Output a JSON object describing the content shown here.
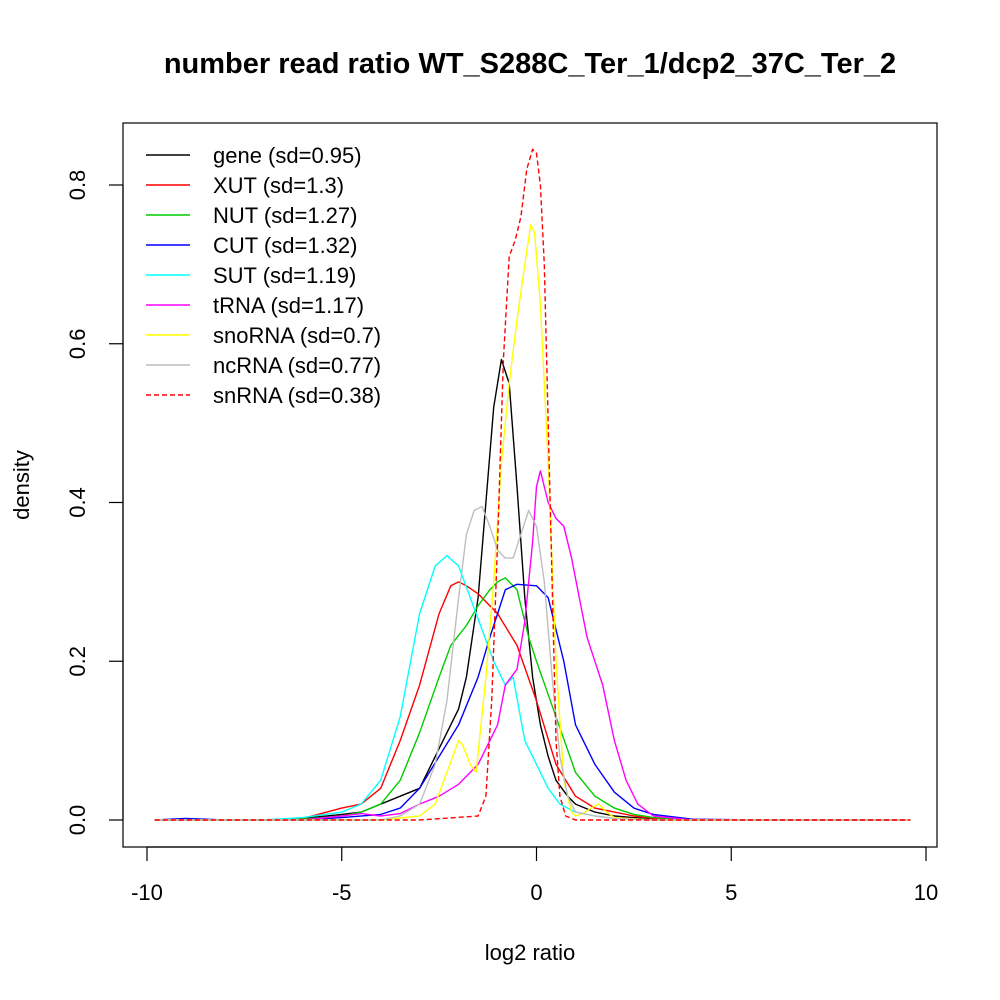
{
  "chart_data": {
    "type": "line",
    "title": "number read ratio WT_S288C_Ter_1/dcp2_37C_Ter_2",
    "xlabel": "log2 ratio",
    "ylabel": "density",
    "xlim": [
      -10,
      10
    ],
    "ylim": [
      0,
      0.85
    ],
    "xticks": [
      -10,
      -5,
      0,
      5,
      10
    ],
    "yticks": [
      0.0,
      0.2,
      0.4,
      0.6,
      0.8
    ],
    "xtick_labels": [
      "-10",
      "-5",
      "0",
      "5",
      "10"
    ],
    "ytick_labels": [
      "0.0",
      "0.2",
      "0.4",
      "0.6",
      "0.8"
    ],
    "grid": false,
    "legend_position": "top-left",
    "series": [
      {
        "name": "gene (sd=0.95)",
        "color": "#000000",
        "dash": false,
        "x": [
          -9.8,
          -7,
          -6,
          -5,
          -4.5,
          -4,
          -3.5,
          -3,
          -2.5,
          -2.2,
          -2,
          -1.8,
          -1.5,
          -1.3,
          -1.1,
          -0.9,
          -0.7,
          -0.5,
          -0.3,
          -0.1,
          0.1,
          0.3,
          0.5,
          0.8,
          1,
          1.5,
          2,
          3,
          4,
          6,
          9.6
        ],
        "y": [
          0,
          0,
          0.002,
          0.007,
          0.01,
          0.02,
          0.03,
          0.04,
          0.09,
          0.12,
          0.14,
          0.18,
          0.28,
          0.4,
          0.52,
          0.58,
          0.55,
          0.42,
          0.28,
          0.18,
          0.12,
          0.08,
          0.05,
          0.03,
          0.02,
          0.01,
          0.005,
          0.001,
          0,
          0,
          0
        ]
      },
      {
        "name": "XUT (sd=1.3)",
        "color": "#ff0000",
        "dash": false,
        "x": [
          -9.8,
          -7,
          -6,
          -5,
          -4.5,
          -4,
          -3.5,
          -3,
          -2.5,
          -2.2,
          -2,
          -1.8,
          -1.5,
          -1,
          -0.5,
          0,
          0.5,
          1,
          1.5,
          2,
          2.5,
          3,
          4,
          6,
          9.6
        ],
        "y": [
          0,
          0,
          0.002,
          0.015,
          0.02,
          0.04,
          0.1,
          0.17,
          0.26,
          0.295,
          0.3,
          0.295,
          0.285,
          0.26,
          0.22,
          0.15,
          0.07,
          0.03,
          0.015,
          0.01,
          0.005,
          0.002,
          0,
          0,
          0
        ]
      },
      {
        "name": "NUT (sd=1.27)",
        "color": "#00cd00",
        "dash": false,
        "x": [
          -9.8,
          -7,
          -6,
          -5,
          -4.5,
          -4,
          -3.5,
          -3,
          -2.5,
          -2.2,
          -1.8,
          -1.5,
          -1.2,
          -1,
          -0.8,
          -0.5,
          -0.2,
          0,
          0.5,
          1,
          1.5,
          2,
          2.5,
          3,
          4,
          6,
          9.6
        ],
        "y": [
          0,
          0,
          0.001,
          0.005,
          0.01,
          0.02,
          0.05,
          0.11,
          0.18,
          0.22,
          0.245,
          0.27,
          0.29,
          0.3,
          0.305,
          0.29,
          0.23,
          0.2,
          0.13,
          0.06,
          0.03,
          0.015,
          0.007,
          0.003,
          0,
          0,
          0
        ]
      },
      {
        "name": "CUT (sd=1.32)",
        "color": "#0000ff",
        "dash": false,
        "x": [
          -9.8,
          -9,
          -8.5,
          -8,
          -7,
          -6,
          -5,
          -4,
          -3.5,
          -3,
          -2.5,
          -2,
          -1.5,
          -1.2,
          -1,
          -0.8,
          -0.5,
          0,
          0.3,
          0.7,
          1,
          1.5,
          2,
          2.5,
          3,
          4,
          6,
          9.6
        ],
        "y": [
          0,
          0.002,
          0.001,
          0,
          0,
          0,
          0.003,
          0.007,
          0.015,
          0.04,
          0.08,
          0.12,
          0.18,
          0.23,
          0.26,
          0.29,
          0.297,
          0.295,
          0.28,
          0.2,
          0.12,
          0.07,
          0.035,
          0.015,
          0.007,
          0.001,
          0,
          0
        ]
      },
      {
        "name": "SUT (sd=1.19)",
        "color": "#00ffff",
        "dash": false,
        "x": [
          -9.8,
          -7,
          -6,
          -5,
          -4.5,
          -4,
          -3.5,
          -3,
          -2.6,
          -2.3,
          -2,
          -1.7,
          -1.4,
          -1.1,
          -0.8,
          -0.6,
          -0.3,
          0,
          0.3,
          0.6,
          1,
          1.5,
          2,
          3,
          4,
          6,
          9.6
        ],
        "y": [
          0,
          0,
          0.003,
          0.01,
          0.02,
          0.05,
          0.13,
          0.26,
          0.32,
          0.333,
          0.32,
          0.28,
          0.24,
          0.2,
          0.17,
          0.18,
          0.1,
          0.07,
          0.04,
          0.02,
          0.01,
          0.005,
          0.002,
          0,
          0,
          0,
          0
        ]
      },
      {
        "name": "tRNA (sd=1.17)",
        "color": "#ff00ff",
        "dash": false,
        "x": [
          -9.8,
          -6,
          -5,
          -4.5,
          -4,
          -3.5,
          -3,
          -2.5,
          -2,
          -1.5,
          -1,
          -0.8,
          -0.5,
          -0.3,
          -0.1,
          0,
          0.1,
          0.3,
          0.5,
          0.7,
          0.9,
          1.1,
          1.3,
          1.5,
          1.7,
          2,
          2.3,
          2.6,
          3,
          4,
          6,
          9.6
        ],
        "y": [
          0,
          0,
          0.005,
          0.008,
          0.005,
          0.008,
          0.02,
          0.03,
          0.045,
          0.07,
          0.12,
          0.17,
          0.19,
          0.25,
          0.35,
          0.42,
          0.44,
          0.4,
          0.38,
          0.37,
          0.33,
          0.28,
          0.23,
          0.2,
          0.17,
          0.1,
          0.05,
          0.02,
          0.005,
          0,
          0,
          0
        ]
      },
      {
        "name": "snoRNA (sd=0.7)",
        "color": "#ffff00",
        "dash": false,
        "x": [
          -9.8,
          -4,
          -3,
          -2.6,
          -2.3,
          -2,
          -1.9,
          -1.7,
          -1.55,
          -1.3,
          -1.1,
          -0.9,
          -0.7,
          -0.5,
          -0.3,
          -0.15,
          -0.05,
          0.1,
          0.3,
          0.5,
          0.7,
          0.9,
          1,
          1.2,
          1.4,
          1.6,
          1.8,
          2,
          3,
          6,
          9.6
        ],
        "y": [
          0,
          0,
          0.005,
          0.02,
          0.06,
          0.1,
          0.095,
          0.07,
          0.06,
          0.18,
          0.3,
          0.45,
          0.55,
          0.63,
          0.7,
          0.75,
          0.74,
          0.65,
          0.45,
          0.2,
          0.05,
          0.01,
          0.005,
          0.008,
          0.015,
          0.02,
          0.01,
          0.003,
          0,
          0,
          0
        ]
      },
      {
        "name": "ncRNA (sd=0.77)",
        "color": "#bebebe",
        "dash": false,
        "x": [
          -9.8,
          -5,
          -4,
          -3.5,
          -3,
          -2.6,
          -2.3,
          -2,
          -1.8,
          -1.6,
          -1.4,
          -1.2,
          -1,
          -0.8,
          -0.6,
          -0.4,
          -0.2,
          0,
          0.2,
          0.4,
          0.6,
          0.8,
          1,
          1.5,
          2,
          3,
          6,
          9.6
        ],
        "y": [
          0,
          0,
          0,
          0.005,
          0.02,
          0.07,
          0.15,
          0.28,
          0.36,
          0.39,
          0.395,
          0.37,
          0.34,
          0.33,
          0.33,
          0.36,
          0.39,
          0.37,
          0.3,
          0.18,
          0.08,
          0.03,
          0.01,
          0.005,
          0.002,
          0,
          0,
          0
        ]
      },
      {
        "name": "snRNA (sd=0.38)",
        "color": "#ff0000",
        "dash": true,
        "x": [
          -9.8,
          -3,
          -1.5,
          -1.3,
          -1.15,
          -1,
          -0.85,
          -0.7,
          -0.55,
          -0.4,
          -0.25,
          -0.1,
          0,
          0.1,
          0.2,
          0.3,
          0.4,
          0.5,
          0.6,
          0.75,
          1,
          2,
          9.6
        ],
        "y": [
          0,
          0,
          0.005,
          0.03,
          0.15,
          0.35,
          0.58,
          0.71,
          0.73,
          0.76,
          0.82,
          0.845,
          0.84,
          0.8,
          0.7,
          0.5,
          0.3,
          0.1,
          0.03,
          0.005,
          0,
          0,
          0
        ]
      }
    ]
  }
}
